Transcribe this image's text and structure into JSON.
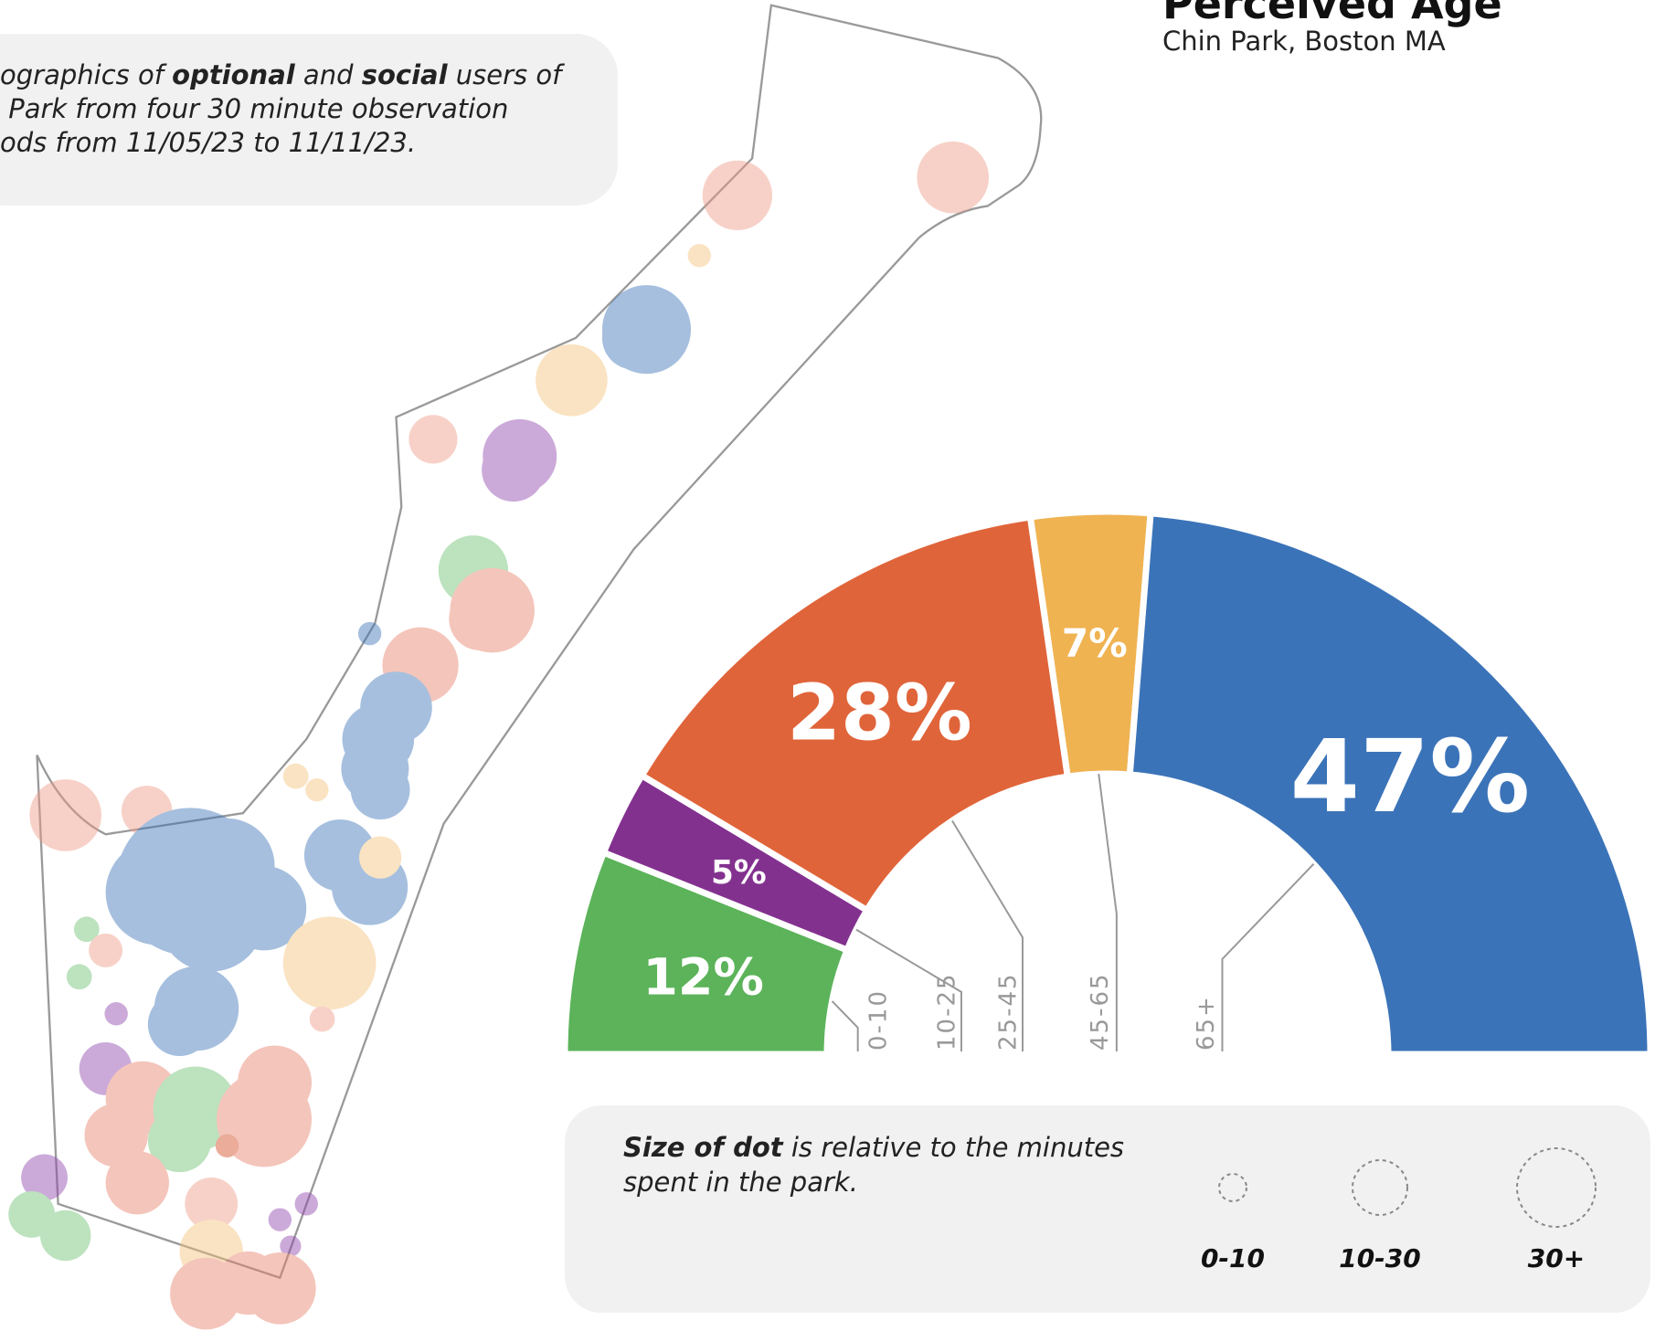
{
  "chart_data": {
    "type": "pie",
    "half": true,
    "title": "Perceived Age",
    "subtitle": "Chin Park, Boston MA",
    "categories": [
      "0-10",
      "10-25",
      "25-45",
      "45-65",
      "65+"
    ],
    "values": [
      12,
      5,
      28,
      7,
      47
    ],
    "value_labels": [
      "12%",
      "5%",
      "28%",
      "7%",
      "47%"
    ],
    "colors": [
      "#5cb35a",
      "#83318f",
      "#e0643a",
      "#efb352",
      "#3b73b8"
    ]
  },
  "note": {
    "lines": [
      [
        {
          "text": "ographics of "
        },
        {
          "text": "optional",
          "bold": true
        },
        {
          "text": " and "
        },
        {
          "text": "social",
          "bold": true
        },
        {
          "text": " users of"
        }
      ],
      [
        {
          "text": " Park from four 30 minute observation"
        }
      ],
      [
        {
          "text": "ods from 11/05/23 to 11/11/23."
        }
      ]
    ]
  },
  "size_legend": {
    "lines": [
      [
        {
          "text": "Size of dot",
          "bold": true
        },
        {
          "text": " is relative to the minutes"
        }
      ],
      [
        {
          "text": "spent in the park."
        }
      ]
    ],
    "labels": [
      "0-10",
      "10-30",
      "30+"
    ]
  }
}
